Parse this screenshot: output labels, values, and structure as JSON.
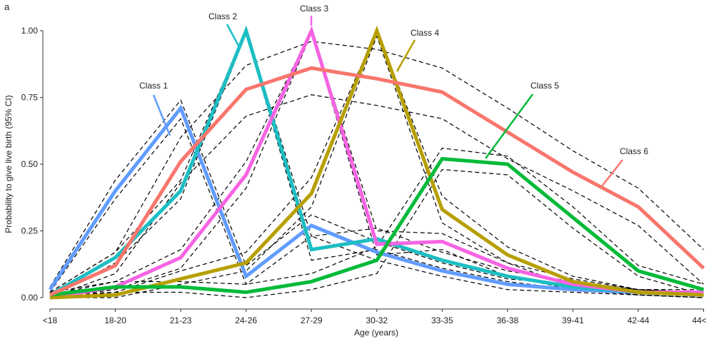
{
  "chart_data": {
    "type": "line",
    "panel_label": "a",
    "xlabel": "Age (years)",
    "ylabel": "Probability to give live birth (95% CI)",
    "categories": [
      "<18",
      "18-20",
      "21-23",
      "24-26",
      "27-29",
      "30-32",
      "33-35",
      "36-38",
      "39-41",
      "42-44",
      "44<"
    ],
    "ylim": [
      0,
      1
    ],
    "yticks": [
      "0.00",
      "0.25",
      "0.50",
      "0.75",
      "1.00"
    ],
    "grid": false,
    "legend": "inline labels",
    "series": [
      {
        "name": "Class 1",
        "color": "#619CFF",
        "values": [
          0.03,
          0.4,
          0.71,
          0.08,
          0.27,
          0.17,
          0.1,
          0.05,
          0.03,
          0.02,
          0.01
        ],
        "ci_lower": [
          0.02,
          0.37,
          0.67,
          0.05,
          0.23,
          0.14,
          0.08,
          0.03,
          0.02,
          0.01,
          0.0
        ],
        "ci_upper": [
          0.04,
          0.44,
          0.74,
          0.12,
          0.31,
          0.21,
          0.13,
          0.07,
          0.05,
          0.03,
          0.02
        ]
      },
      {
        "name": "Class 2",
        "color": "#1CBEC3",
        "values": [
          0.01,
          0.15,
          0.4,
          1.0,
          0.18,
          0.22,
          0.14,
          0.08,
          0.04,
          0.02,
          0.01
        ],
        "ci_lower": [
          0.0,
          0.13,
          0.37,
          0.99,
          0.14,
          0.18,
          0.11,
          0.06,
          0.03,
          0.01,
          0.0
        ],
        "ci_upper": [
          0.02,
          0.17,
          0.44,
          1.0,
          0.23,
          0.26,
          0.17,
          0.1,
          0.06,
          0.03,
          0.02
        ]
      },
      {
        "name": "Class 3",
        "color": "#F564E3",
        "values": [
          0.0,
          0.04,
          0.15,
          0.46,
          1.0,
          0.2,
          0.21,
          0.11,
          0.05,
          0.02,
          0.02
        ],
        "ci_lower": [
          0.0,
          0.03,
          0.11,
          0.41,
          0.99,
          0.16,
          0.18,
          0.08,
          0.03,
          0.01,
          0.0
        ],
        "ci_upper": [
          0.01,
          0.06,
          0.18,
          0.51,
          1.0,
          0.25,
          0.24,
          0.13,
          0.07,
          0.03,
          0.03
        ]
      },
      {
        "name": "Class 4",
        "color": "#B79F00",
        "values": [
          0.0,
          0.01,
          0.07,
          0.13,
          0.39,
          1.0,
          0.33,
          0.16,
          0.06,
          0.02,
          0.01
        ],
        "ci_lower": [
          0.0,
          0.0,
          0.05,
          0.1,
          0.34,
          0.98,
          0.28,
          0.13,
          0.04,
          0.01,
          0.0
        ],
        "ci_upper": [
          0.01,
          0.02,
          0.1,
          0.17,
          0.45,
          1.0,
          0.38,
          0.19,
          0.08,
          0.03,
          0.02
        ]
      },
      {
        "name": "Class 5",
        "color": "#00BA38",
        "values": [
          0.01,
          0.04,
          0.04,
          0.02,
          0.06,
          0.14,
          0.52,
          0.5,
          0.3,
          0.1,
          0.03
        ],
        "ci_lower": [
          0.0,
          0.02,
          0.02,
          0.0,
          0.03,
          0.09,
          0.48,
          0.46,
          0.26,
          0.08,
          0.01
        ],
        "ci_upper": [
          0.02,
          0.06,
          0.06,
          0.05,
          0.09,
          0.19,
          0.56,
          0.53,
          0.34,
          0.12,
          0.05
        ]
      },
      {
        "name": "Class 6",
        "color": "#F8766D",
        "values": [
          0.01,
          0.12,
          0.51,
          0.78,
          0.86,
          0.82,
          0.77,
          0.62,
          0.47,
          0.34,
          0.11
        ],
        "ci_lower": [
          0.0,
          0.09,
          0.43,
          0.68,
          0.76,
          0.72,
          0.67,
          0.52,
          0.4,
          0.27,
          0.05
        ],
        "ci_upper": [
          0.02,
          0.17,
          0.6,
          0.87,
          0.96,
          0.93,
          0.86,
          0.71,
          0.55,
          0.41,
          0.18
        ]
      }
    ]
  }
}
